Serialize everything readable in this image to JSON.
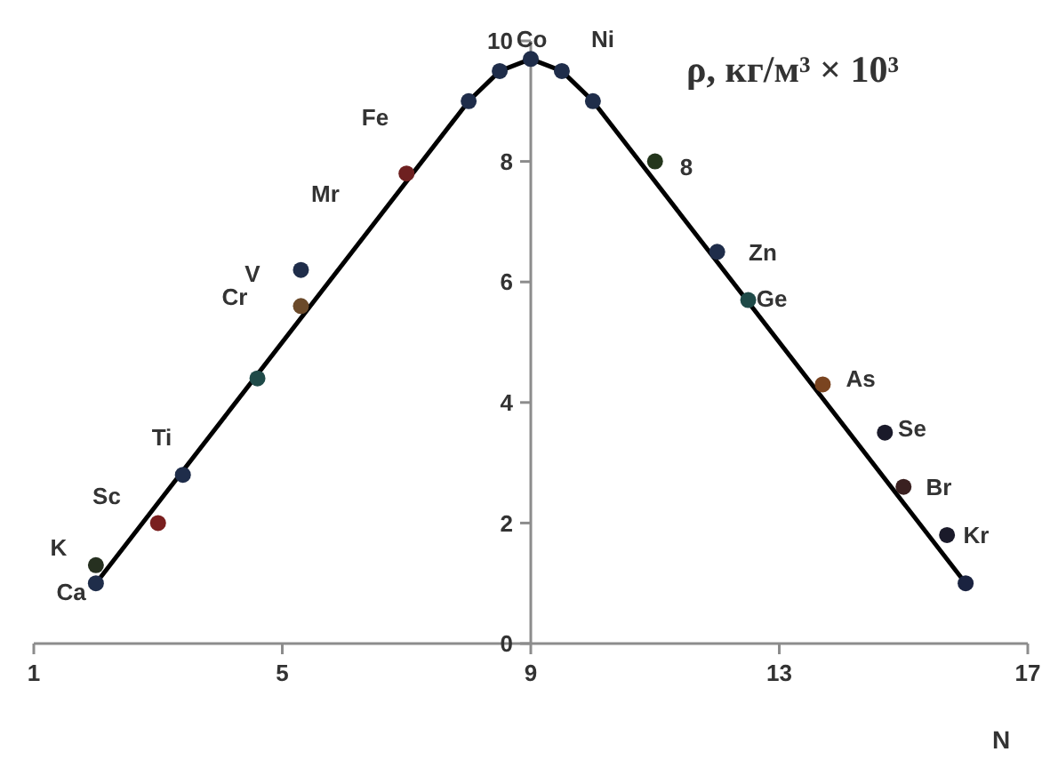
{
  "chart_data": {
    "type": "scatter",
    "xlabel": "N",
    "ylabel": "ρ, кг/м³ × 10³",
    "xlim": [
      1,
      17
    ],
    "ylim": [
      0,
      10
    ],
    "xticks": [
      1,
      5,
      9,
      13,
      17
    ],
    "yticks": [
      0,
      2,
      4,
      6,
      8,
      10
    ],
    "series": [
      {
        "type": "scatter",
        "marker": "circle",
        "x": [
          2,
          2,
          3,
          3.4,
          4.6,
          5.3,
          5.3,
          7.0,
          8.0,
          8.5,
          9.0,
          9.5,
          10.0,
          11.0,
          12.0,
          12.5,
          13.7,
          14.7,
          15.0,
          15.7,
          16.0
        ],
        "values": [
          1.0,
          1.3,
          2.0,
          2.8,
          4.4,
          5.6,
          6.2,
          7.8,
          9.0,
          9.5,
          9.7,
          9.5,
          9.0,
          8.0,
          6.5,
          5.7,
          4.3,
          3.5,
          2.6,
          1.8,
          1.0
        ],
        "colors": [
          "#1f2d4a",
          "#263020",
          "#7a1f1f",
          "#1f2d4a",
          "#1f4a48",
          "#6b4a2a",
          "#1f2d4a",
          "#6e2020",
          "#1f2d4a",
          "#1f2d4a",
          "#1f2d4a",
          "#1f2d4a",
          "#1f2d4a",
          "#24361c",
          "#1f2d4a",
          "#1f4a48",
          "#7a4420",
          "#1a1a2a",
          "#3a2020",
          "#1a1a2a",
          "#1a2340"
        ]
      },
      {
        "type": "line",
        "marker": "none",
        "color": "#000000",
        "x": [
          2,
          8,
          8.5,
          9,
          9.5,
          10,
          16
        ],
        "values": [
          1.0,
          9.0,
          9.5,
          9.7,
          9.5,
          9.0,
          1.0
        ]
      }
    ],
    "annotations": [
      "Ca",
      "K",
      "Sc",
      "Ti",
      "V",
      "Cr",
      "Mr",
      "Fe",
      "Co",
      "Ni",
      "8",
      "Zn",
      "Ge",
      "As",
      "Se",
      "Br",
      "Kr"
    ]
  }
}
